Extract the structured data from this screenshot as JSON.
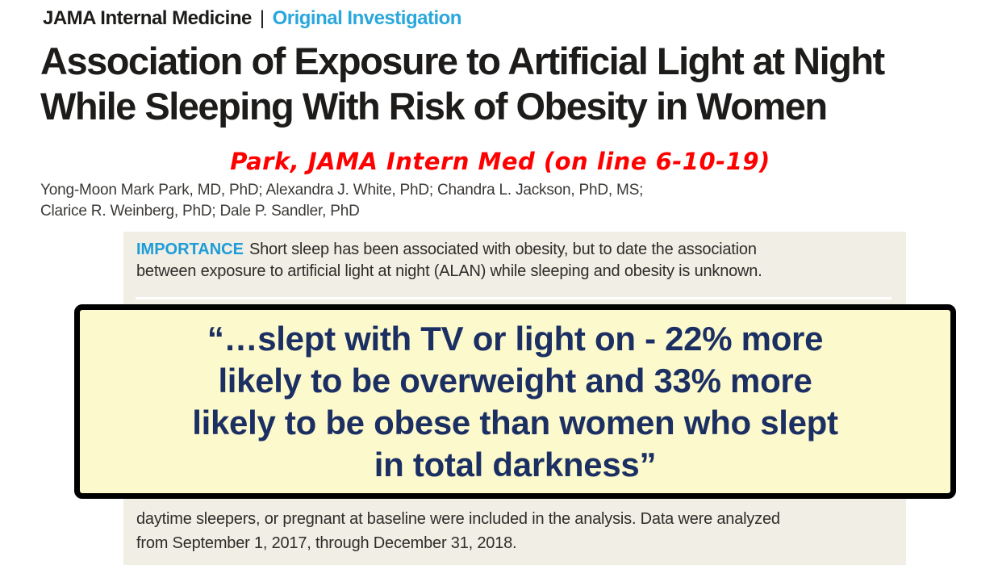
{
  "page": {
    "kicker": {
      "journal": "JAMA Internal Medicine",
      "separator": "|",
      "category": "Original Investigation"
    },
    "title_lines": [
      "Association of Exposure to Artificial Light at Night",
      "While Sleeping With Risk of Obesity in Women"
    ],
    "citation_note": "Park, JAMA Intern Med (on line 6-10-19)",
    "authors_lines": [
      "Yong-Moon Mark Park, MD, PhD; Alexandra J. White, PhD; Chandra L. Jackson, PhD, MS;",
      "Clarice R. Weinberg, PhD; Dale P. Sandler, PhD"
    ],
    "abstract": {
      "importance_label": "IMPORTANCE",
      "importance_lines": [
        "Short sleep has been associated with obesity, but to date the association",
        "between exposure to artificial light at night (ALAN) while sleeping and obesity is unknown."
      ],
      "continuation_lines": [
        "daytime sleepers, or pregnant at baseline were included in the analysis. Data were analyzed",
        "from September 1, 2017, through December 31, 2018."
      ]
    },
    "callout": {
      "lines": [
        "“…slept with TV or light on - 22% more",
        "likely to be overweight and 33% more",
        "likely to be obese than women who slept",
        "in total darkness”"
      ]
    },
    "colors": {
      "category_blue": "#2AA7DC",
      "importance_label_blue": "#1E9CD7",
      "annotation_red": "#FF0000",
      "callout_text_navy": "#1C2F63",
      "callout_background": "#FCFACC",
      "callout_border": "#000000",
      "abstract_background": "#F0EEE5"
    }
  }
}
